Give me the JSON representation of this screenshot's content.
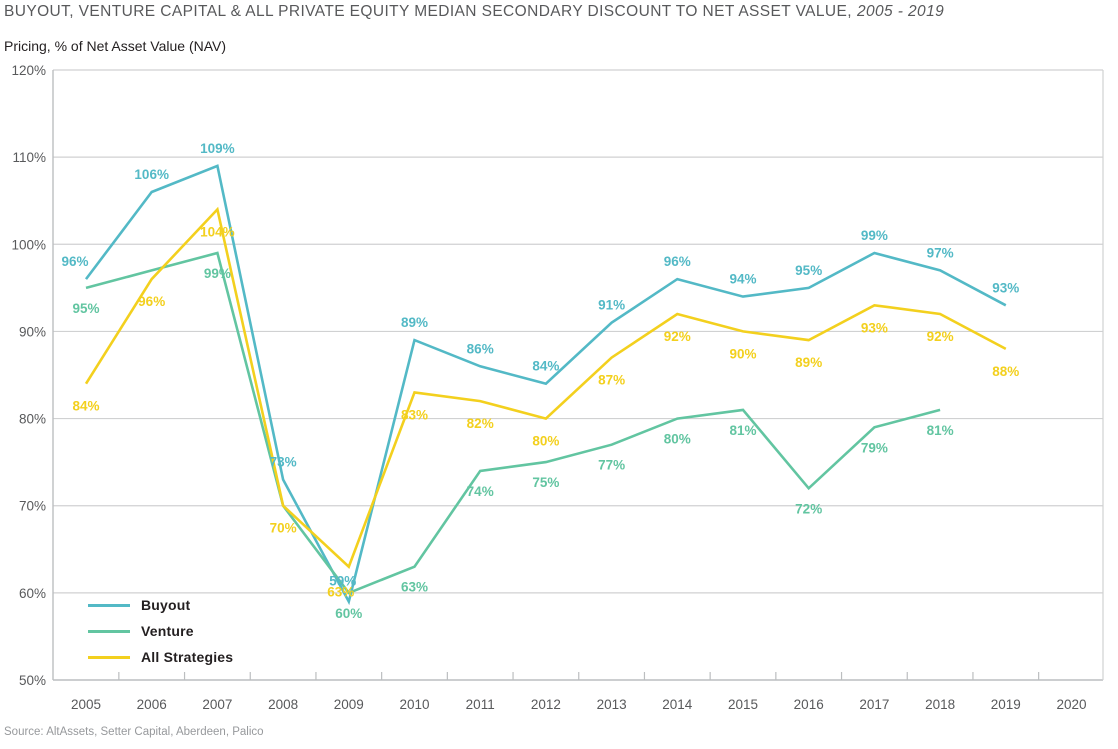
{
  "title": {
    "main": "BUYOUT, VENTURE CAPITAL & ALL PRIVATE EQUITY MEDIAN SECONDARY DISCOUNT TO NET ASSET VALUE,",
    "range": "2005 - 2019"
  },
  "subtitle": "Pricing, % of Net Asset Value (NAV)",
  "source": "Source: AltAssets, Setter Capital, Aberdeen, Palico",
  "colors": {
    "buyout": "#53b9c6",
    "venture": "#62c5a1",
    "all_strategies": "#f3d01e",
    "gridline": "#d0d1d2",
    "axis": "#bcbec0",
    "tick_text": "#58595b"
  },
  "chart_data": {
    "type": "line",
    "title": "Buyout, Venture Capital & All Private Equity Median Secondary Discount to Net Asset Value, 2005 - 2019",
    "ylabel": "Pricing, % of Net Asset Value (NAV)",
    "ylim": [
      50,
      120
    ],
    "grid": true,
    "legend_position": "bottom-left-inside",
    "x": [
      2005,
      2006,
      2007,
      2008,
      2009,
      2010,
      2011,
      2012,
      2013,
      2014,
      2015,
      2016,
      2017,
      2018,
      2019
    ],
    "x_axis_ticks": [
      {
        "label": "2005"
      },
      {
        "label": "2006"
      },
      {
        "label": "2007"
      },
      {
        "label": "2008"
      },
      {
        "label": "2009"
      },
      {
        "label": "2010"
      },
      {
        "label": "2011"
      },
      {
        "label": "2012"
      },
      {
        "label": "2013"
      },
      {
        "label": "2014"
      },
      {
        "label": "2015"
      },
      {
        "label": "2016"
      },
      {
        "label": "2017"
      },
      {
        "label": "2018"
      },
      {
        "label": "2019"
      },
      {
        "label": "2020"
      }
    ],
    "y_axis_ticks": [
      {
        "label": "120%",
        "value": 120
      },
      {
        "label": "110%",
        "value": 110
      },
      {
        "label": "100%",
        "value": 100
      },
      {
        "label": "90%",
        "value": 90
      },
      {
        "label": "80%",
        "value": 80
      },
      {
        "label": "70%",
        "value": 70
      },
      {
        "label": "60%",
        "value": 60
      },
      {
        "label": "50%",
        "value": 50
      }
    ],
    "series": [
      {
        "name": "Buyout",
        "color": "#53b9c6",
        "values": [
          96,
          106,
          109,
          73,
          59,
          89,
          86,
          84,
          91,
          96,
          94,
          95,
          99,
          97,
          93
        ],
        "labels": [
          "96%",
          "106%",
          "109%",
          "73%",
          "59%",
          "89%",
          "86%",
          "84%",
          "91%",
          "96%",
          "94%",
          "95%",
          "99%",
          "97%",
          "93%"
        ]
      },
      {
        "name": "Venture",
        "color": "#62c5a1",
        "values": [
          95,
          97,
          99,
          70,
          60,
          63,
          74,
          75,
          77,
          80,
          81,
          72,
          79,
          81
        ],
        "labels": [
          "95%",
          null,
          "99%",
          null,
          "60%",
          "63%",
          "74%",
          "75%",
          "77%",
          "80%",
          "81%",
          "72%",
          "79%",
          "81%"
        ]
      },
      {
        "name": "All Strategies",
        "color": "#f3d01e",
        "values": [
          84,
          96,
          104,
          70,
          63,
          83,
          82,
          80,
          87,
          92,
          90,
          89,
          93,
          92,
          88
        ],
        "labels": [
          "84%",
          "96%",
          "104%",
          "70%",
          "63%",
          "83%",
          "82%",
          "80%",
          "87%",
          "92%",
          "90%",
          "89%",
          "93%",
          "92%",
          "88%"
        ]
      }
    ]
  }
}
